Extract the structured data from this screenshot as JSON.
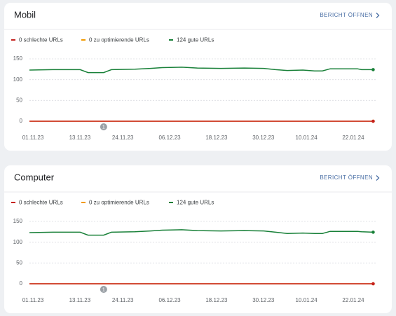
{
  "chart_data": [
    {
      "type": "line",
      "title": "Mobil",
      "link": "BERICHT ÖFFNEN",
      "x": [
        "01.11.23",
        "07.11.23",
        "14.11.23",
        "16.11.23",
        "20.11.23",
        "22.11.23",
        "28.11.23",
        "02.12.23",
        "05.12.23",
        "10.12.23",
        "14.12.23",
        "20.12.23",
        "26.12.23",
        "31.12.23",
        "03.01.24",
        "06.01.24",
        "10.01.24",
        "13.01.24",
        "15.01.24",
        "17.01.24",
        "24.01.24",
        "25.01.24",
        "28.01.24"
      ],
      "xlim": [
        "01.11.23",
        "29.01.24"
      ],
      "xticks": [
        "01.11.23",
        "13.11.23",
        "24.11.23",
        "06.12.23",
        "18.12.23",
        "30.12.23",
        "10.01.24",
        "22.01.24"
      ],
      "ylim": [
        0,
        150
      ],
      "yticks": [
        0,
        50,
        100,
        150
      ],
      "grid": true,
      "series": [
        {
          "name": "0 schlechte URLs",
          "color": "#c5221f",
          "values": [
            0,
            0,
            0,
            0,
            0,
            0,
            0,
            0,
            0,
            0,
            0,
            0,
            0,
            0,
            0,
            0,
            0,
            0,
            0,
            0,
            0,
            0,
            0
          ]
        },
        {
          "name": "0 zu optimierende URLs",
          "color": "#f29900",
          "values": [
            0,
            0,
            0,
            0,
            0,
            0,
            0,
            0,
            0,
            0,
            0,
            0,
            0,
            0,
            0,
            0,
            0,
            0,
            0,
            0,
            0,
            0,
            0
          ]
        },
        {
          "name": "124 gute URLs",
          "color": "#188038",
          "values": [
            123,
            124,
            124,
            117,
            117,
            124,
            125,
            127,
            129,
            130,
            128,
            127,
            128,
            127,
            124,
            122,
            123,
            121,
            121,
            126,
            126,
            124,
            124
          ]
        }
      ],
      "annotations": [
        {
          "x": "20.11.23",
          "label": "1"
        }
      ]
    },
    {
      "type": "line",
      "title": "Computer",
      "link": "BERICHT ÖFFNEN",
      "x": [
        "01.11.23",
        "07.11.23",
        "14.11.23",
        "16.11.23",
        "20.11.23",
        "22.11.23",
        "28.11.23",
        "02.12.23",
        "05.12.23",
        "10.12.23",
        "14.12.23",
        "20.12.23",
        "26.12.23",
        "31.12.23",
        "03.01.24",
        "06.01.24",
        "10.01.24",
        "13.01.24",
        "15.01.24",
        "17.01.24",
        "24.01.24",
        "25.01.24",
        "28.01.24"
      ],
      "xlim": [
        "01.11.23",
        "29.01.24"
      ],
      "xticks": [
        "01.11.23",
        "13.11.23",
        "24.11.23",
        "06.12.23",
        "18.12.23",
        "30.12.23",
        "10.01.24",
        "22.01.24"
      ],
      "ylim": [
        0,
        150
      ],
      "yticks": [
        0,
        50,
        100,
        150
      ],
      "grid": true,
      "series": [
        {
          "name": "0 schlechte URLs",
          "color": "#c5221f",
          "values": [
            0,
            0,
            0,
            0,
            0,
            0,
            0,
            0,
            0,
            0,
            0,
            0,
            0,
            0,
            0,
            0,
            0,
            0,
            0,
            0,
            0,
            0,
            0
          ]
        },
        {
          "name": "0 zu optimierende URLs",
          "color": "#f29900",
          "values": [
            0,
            0,
            0,
            0,
            0,
            0,
            0,
            0,
            0,
            0,
            0,
            0,
            0,
            0,
            0,
            0,
            0,
            0,
            0,
            0,
            0,
            0,
            0
          ]
        },
        {
          "name": "124 gute URLs",
          "color": "#188038",
          "values": [
            123,
            124,
            124,
            117,
            117,
            124,
            125,
            127,
            129,
            130,
            128,
            127,
            128,
            127,
            124,
            121,
            122,
            121,
            121,
            126,
            126,
            125,
            124
          ]
        }
      ],
      "annotations": [
        {
          "x": "20.11.23",
          "label": "1"
        }
      ]
    }
  ]
}
